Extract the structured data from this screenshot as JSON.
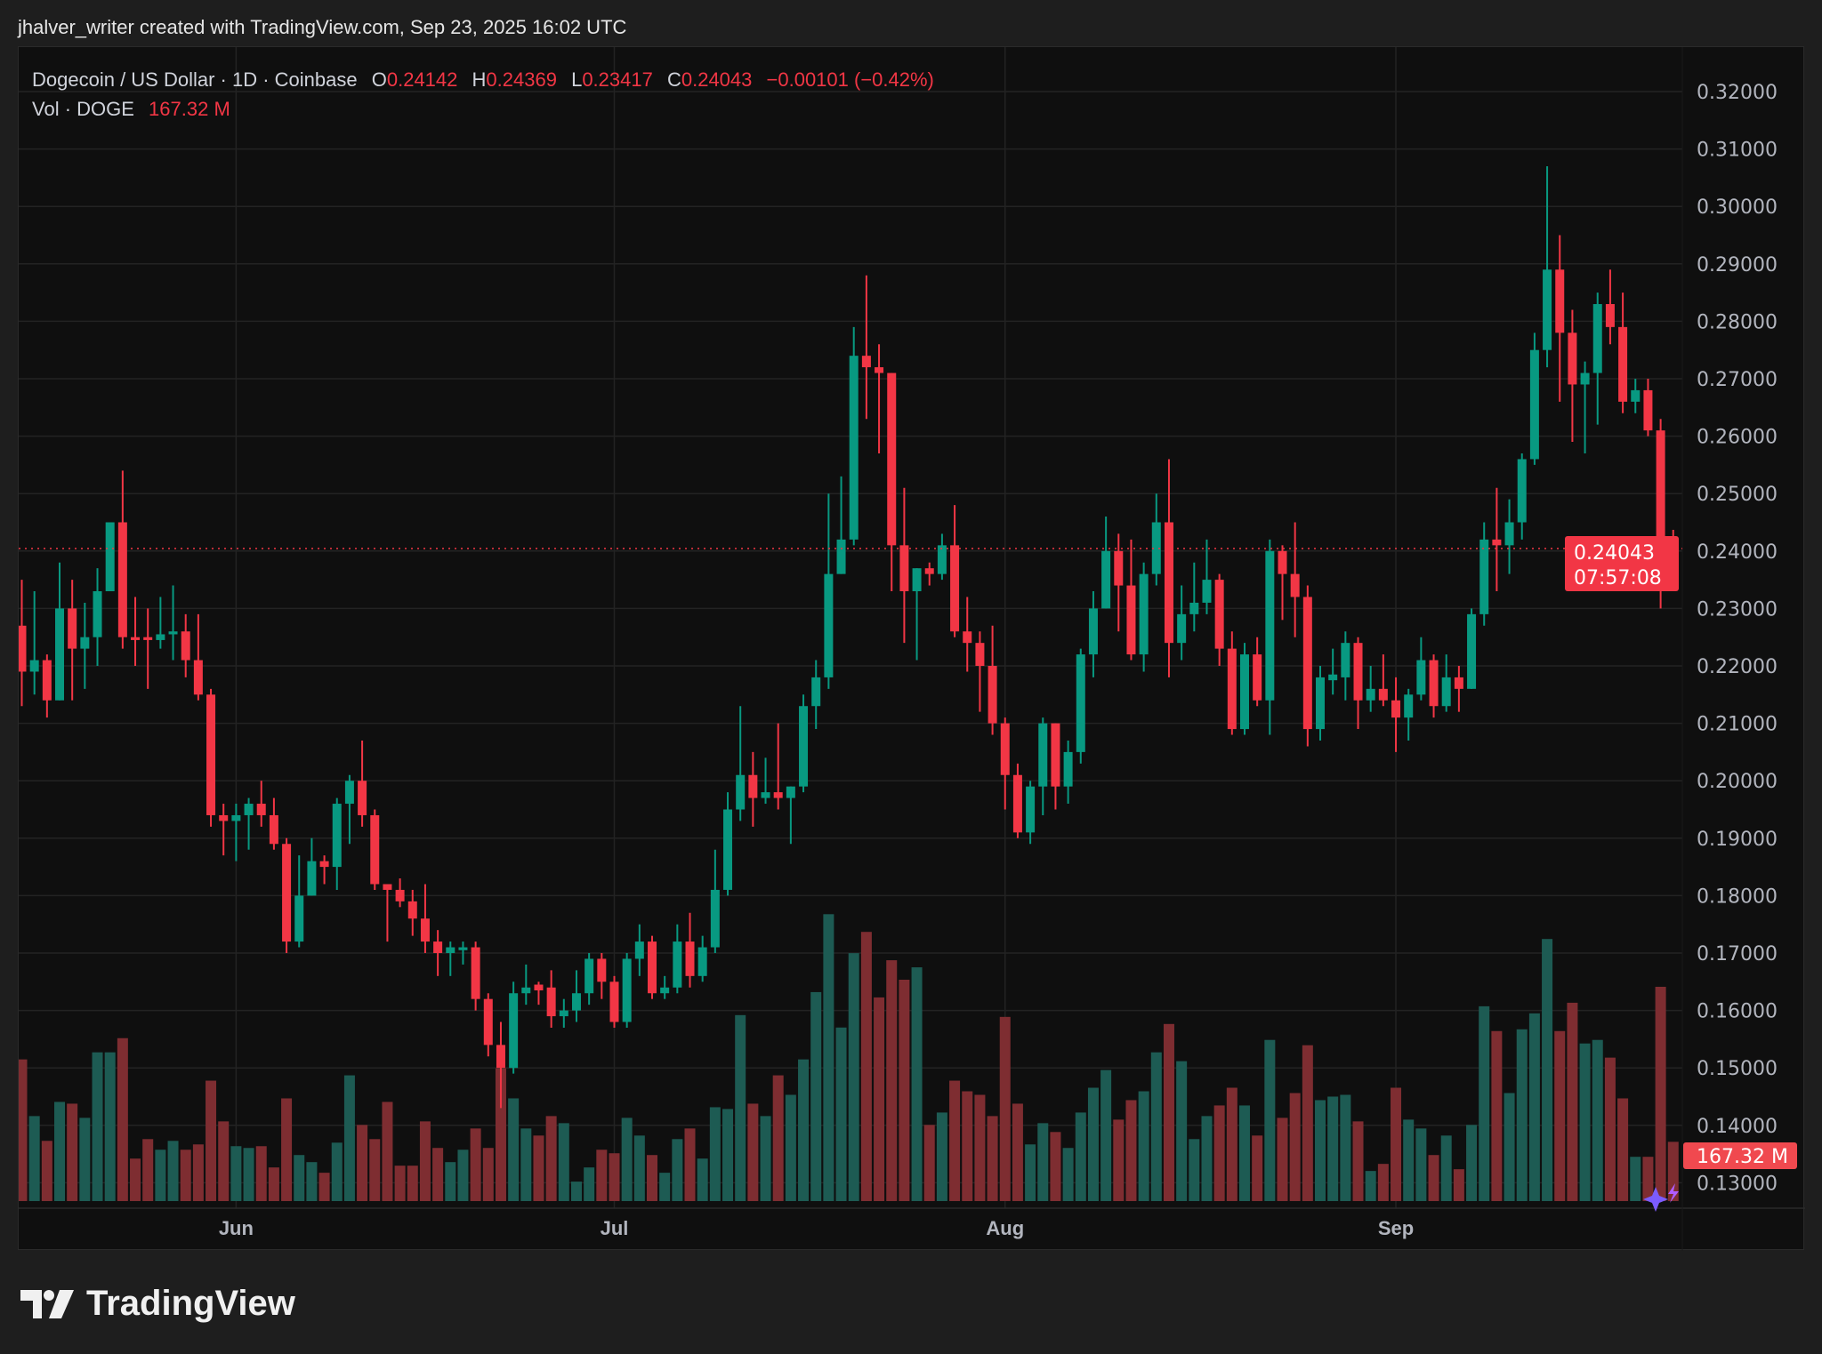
{
  "credit": "jhalver_writer created with TradingView.com, Sep 23, 2025 16:02 UTC",
  "legend": {
    "symbol": "Dogecoin / US Dollar · 1D · Coinbase",
    "o_label": "O",
    "o": "0.24142",
    "h_label": "H",
    "h": "0.24369",
    "l_label": "L",
    "l": "0.23417",
    "c_label": "C",
    "c": "0.24043",
    "change": "−0.00101 (−0.42%)",
    "vol_label": "Vol · DOGE",
    "vol": "167.32 M"
  },
  "price_tag": {
    "price": "0.24043",
    "countdown": "07:57:08"
  },
  "volume_tag": "167.32 M",
  "brand": "TradingView",
  "colors": {
    "up": "#089981",
    "down": "#f23645",
    "vol_up": "#1d5b53",
    "vol_down": "#7e2d31",
    "grid": "#232323"
  },
  "chart_data": {
    "type": "candlestick",
    "title": "Dogecoin / US Dollar · 1D · Coinbase",
    "start_date": "2025-05-15",
    "end_date": "2025-09-23",
    "ylim": [
      0.125,
      0.325
    ],
    "y_ticks": [
      "0.32000",
      "0.31000",
      "0.30000",
      "0.29000",
      "0.28000",
      "0.27000",
      "0.26000",
      "0.25000",
      "0.24000",
      "0.23000",
      "0.22000",
      "0.21000",
      "0.20000",
      "0.19000",
      "0.18000",
      "0.17000",
      "0.16000",
      "0.15000",
      "0.14000",
      "0.13000"
    ],
    "x_ticks": [
      {
        "label": "Jun",
        "day": 17
      },
      {
        "label": "Jul",
        "day": 47
      },
      {
        "label": "Aug",
        "day": 78
      },
      {
        "label": "Sep",
        "day": 109
      }
    ],
    "last_price": 0.24043,
    "fields": [
      "open",
      "high",
      "low",
      "close",
      "volume_M"
    ],
    "candles": [
      [
        0.227,
        0.235,
        0.213,
        0.219,
        400
      ],
      [
        0.219,
        0.233,
        0.215,
        0.221,
        240
      ],
      [
        0.221,
        0.222,
        0.211,
        0.214,
        170
      ],
      [
        0.214,
        0.238,
        0.214,
        0.23,
        280
      ],
      [
        0.23,
        0.235,
        0.214,
        0.223,
        275
      ],
      [
        0.223,
        0.231,
        0.216,
        0.225,
        235
      ],
      [
        0.225,
        0.237,
        0.22,
        0.233,
        420
      ],
      [
        0.233,
        0.245,
        0.233,
        0.245,
        420
      ],
      [
        0.245,
        0.254,
        0.223,
        0.225,
        460
      ],
      [
        0.225,
        0.232,
        0.22,
        0.2245,
        120
      ],
      [
        0.225,
        0.23,
        0.216,
        0.2245,
        175
      ],
      [
        0.2245,
        0.232,
        0.223,
        0.2255,
        145
      ],
      [
        0.2255,
        0.234,
        0.221,
        0.226,
        170
      ],
      [
        0.226,
        0.229,
        0.218,
        0.221,
        145
      ],
      [
        0.221,
        0.229,
        0.214,
        0.215,
        160
      ],
      [
        0.215,
        0.216,
        0.192,
        0.194,
        340
      ],
      [
        0.194,
        0.196,
        0.187,
        0.193,
        225
      ],
      [
        0.193,
        0.196,
        0.186,
        0.194,
        155
      ],
      [
        0.194,
        0.197,
        0.188,
        0.196,
        150
      ],
      [
        0.196,
        0.2,
        0.192,
        0.194,
        155
      ],
      [
        0.194,
        0.197,
        0.188,
        0.189,
        95
      ],
      [
        0.189,
        0.19,
        0.17,
        0.172,
        290
      ],
      [
        0.172,
        0.187,
        0.171,
        0.18,
        130
      ],
      [
        0.18,
        0.19,
        0.18,
        0.186,
        110
      ],
      [
        0.186,
        0.187,
        0.182,
        0.185,
        80
      ],
      [
        0.185,
        0.197,
        0.181,
        0.196,
        165
      ],
      [
        0.196,
        0.201,
        0.189,
        0.2,
        355
      ],
      [
        0.2,
        0.207,
        0.192,
        0.194,
        215
      ],
      [
        0.194,
        0.195,
        0.181,
        0.182,
        175
      ],
      [
        0.182,
        0.182,
        0.172,
        0.181,
        280
      ],
      [
        0.181,
        0.183,
        0.178,
        0.179,
        100
      ],
      [
        0.179,
        0.181,
        0.173,
        0.176,
        100
      ],
      [
        0.176,
        0.182,
        0.17,
        0.172,
        225
      ],
      [
        0.172,
        0.174,
        0.166,
        0.17,
        150
      ],
      [
        0.17,
        0.172,
        0.166,
        0.171,
        110
      ],
      [
        0.1705,
        0.172,
        0.168,
        0.171,
        145
      ],
      [
        0.171,
        0.172,
        0.16,
        0.162,
        205
      ],
      [
        0.162,
        0.163,
        0.152,
        0.154,
        150
      ],
      [
        0.154,
        0.158,
        0.143,
        0.15,
        375
      ],
      [
        0.15,
        0.165,
        0.149,
        0.163,
        290
      ],
      [
        0.163,
        0.168,
        0.161,
        0.164,
        205
      ],
      [
        0.1645,
        0.165,
        0.161,
        0.1635,
        185
      ],
      [
        0.164,
        0.167,
        0.157,
        0.159,
        240
      ],
      [
        0.159,
        0.162,
        0.157,
        0.16,
        220
      ],
      [
        0.16,
        0.167,
        0.158,
        0.163,
        55
      ],
      [
        0.163,
        0.17,
        0.161,
        0.169,
        95
      ],
      [
        0.169,
        0.17,
        0.162,
        0.165,
        145
      ],
      [
        0.165,
        0.166,
        0.157,
        0.158,
        135
      ],
      [
        0.158,
        0.17,
        0.157,
        0.169,
        235
      ],
      [
        0.169,
        0.175,
        0.166,
        0.172,
        185
      ],
      [
        0.172,
        0.173,
        0.162,
        0.163,
        130
      ],
      [
        0.163,
        0.166,
        0.162,
        0.164,
        80
      ],
      [
        0.164,
        0.175,
        0.163,
        0.172,
        175
      ],
      [
        0.172,
        0.177,
        0.164,
        0.166,
        205
      ],
      [
        0.166,
        0.173,
        0.165,
        0.171,
        120
      ],
      [
        0.171,
        0.188,
        0.17,
        0.181,
        265
      ],
      [
        0.181,
        0.198,
        0.18,
        0.195,
        260
      ],
      [
        0.195,
        0.213,
        0.193,
        0.201,
        525
      ],
      [
        0.201,
        0.205,
        0.192,
        0.197,
        275
      ],
      [
        0.197,
        0.204,
        0.196,
        0.198,
        240
      ],
      [
        0.198,
        0.21,
        0.195,
        0.197,
        355
      ],
      [
        0.197,
        0.199,
        0.189,
        0.199,
        300
      ],
      [
        0.199,
        0.215,
        0.198,
        0.213,
        400
      ],
      [
        0.213,
        0.221,
        0.209,
        0.218,
        590
      ],
      [
        0.218,
        0.25,
        0.216,
        0.236,
        810
      ],
      [
        0.236,
        0.253,
        0.236,
        0.242,
        490
      ],
      [
        0.242,
        0.279,
        0.241,
        0.274,
        700
      ],
      [
        0.274,
        0.288,
        0.263,
        0.272,
        760
      ],
      [
        0.272,
        0.276,
        0.257,
        0.271,
        575
      ],
      [
        0.271,
        0.271,
        0.233,
        0.241,
        680
      ],
      [
        0.241,
        0.251,
        0.224,
        0.233,
        625
      ],
      [
        0.233,
        0.237,
        0.221,
        0.237,
        660
      ],
      [
        0.237,
        0.238,
        0.234,
        0.236,
        215
      ],
      [
        0.236,
        0.243,
        0.235,
        0.241,
        250
      ],
      [
        0.241,
        0.248,
        0.225,
        0.226,
        340
      ],
      [
        0.226,
        0.232,
        0.219,
        0.224,
        310
      ],
      [
        0.224,
        0.226,
        0.212,
        0.22,
        300
      ],
      [
        0.22,
        0.227,
        0.208,
        0.21,
        240
      ],
      [
        0.21,
        0.211,
        0.195,
        0.201,
        520
      ],
      [
        0.201,
        0.203,
        0.19,
        0.191,
        275
      ],
      [
        0.191,
        0.2,
        0.189,
        0.199,
        160
      ],
      [
        0.199,
        0.211,
        0.194,
        0.21,
        220
      ],
      [
        0.21,
        0.21,
        0.195,
        0.199,
        195
      ],
      [
        0.199,
        0.207,
        0.196,
        0.205,
        150
      ],
      [
        0.205,
        0.223,
        0.203,
        0.222,
        250
      ],
      [
        0.222,
        0.233,
        0.218,
        0.23,
        320
      ],
      [
        0.23,
        0.246,
        0.23,
        0.24,
        370
      ],
      [
        0.24,
        0.243,
        0.226,
        0.234,
        230
      ],
      [
        0.234,
        0.242,
        0.221,
        0.222,
        285
      ],
      [
        0.222,
        0.238,
        0.219,
        0.236,
        310
      ],
      [
        0.236,
        0.25,
        0.234,
        0.245,
        420
      ],
      [
        0.245,
        0.256,
        0.218,
        0.224,
        500
      ],
      [
        0.224,
        0.234,
        0.221,
        0.229,
        395
      ],
      [
        0.229,
        0.238,
        0.226,
        0.231,
        175
      ],
      [
        0.231,
        0.242,
        0.229,
        0.235,
        240
      ],
      [
        0.235,
        0.236,
        0.22,
        0.223,
        270
      ],
      [
        0.223,
        0.226,
        0.208,
        0.209,
        320
      ],
      [
        0.209,
        0.224,
        0.208,
        0.222,
        270
      ],
      [
        0.222,
        0.225,
        0.213,
        0.214,
        185
      ],
      [
        0.214,
        0.242,
        0.208,
        0.24,
        455
      ],
      [
        0.24,
        0.241,
        0.228,
        0.236,
        235
      ],
      [
        0.236,
        0.245,
        0.225,
        0.232,
        305
      ],
      [
        0.232,
        0.234,
        0.206,
        0.209,
        440
      ],
      [
        0.209,
        0.22,
        0.207,
        0.218,
        285
      ],
      [
        0.2175,
        0.223,
        0.215,
        0.2185,
        295
      ],
      [
        0.218,
        0.226,
        0.214,
        0.224,
        300
      ],
      [
        0.224,
        0.225,
        0.209,
        0.214,
        225
      ],
      [
        0.214,
        0.22,
        0.212,
        0.216,
        85
      ],
      [
        0.216,
        0.222,
        0.213,
        0.214,
        105
      ],
      [
        0.214,
        0.218,
        0.205,
        0.211,
        320
      ],
      [
        0.211,
        0.216,
        0.207,
        0.215,
        230
      ],
      [
        0.215,
        0.225,
        0.214,
        0.221,
        205
      ],
      [
        0.221,
        0.222,
        0.211,
        0.213,
        130
      ],
      [
        0.213,
        0.222,
        0.212,
        0.218,
        185
      ],
      [
        0.218,
        0.22,
        0.212,
        0.216,
        90
      ],
      [
        0.216,
        0.23,
        0.216,
        0.229,
        215
      ],
      [
        0.229,
        0.245,
        0.227,
        0.242,
        550
      ],
      [
        0.242,
        0.251,
        0.233,
        0.241,
        480
      ],
      [
        0.241,
        0.249,
        0.236,
        0.245,
        305
      ],
      [
        0.245,
        0.257,
        0.242,
        0.256,
        485
      ],
      [
        0.256,
        0.278,
        0.255,
        0.275,
        530
      ],
      [
        0.275,
        0.307,
        0.272,
        0.289,
        740
      ],
      [
        0.289,
        0.295,
        0.266,
        0.278,
        480
      ],
      [
        0.278,
        0.282,
        0.259,
        0.269,
        560
      ],
      [
        0.269,
        0.273,
        0.257,
        0.271,
        445
      ],
      [
        0.271,
        0.285,
        0.262,
        0.283,
        455
      ],
      [
        0.283,
        0.289,
        0.276,
        0.279,
        405
      ],
      [
        0.279,
        0.285,
        0.264,
        0.266,
        290
      ],
      [
        0.266,
        0.27,
        0.264,
        0.268,
        125
      ],
      [
        0.268,
        0.27,
        0.26,
        0.261,
        125
      ],
      [
        0.261,
        0.263,
        0.23,
        0.242,
        605
      ],
      [
        0.24142,
        0.24369,
        0.23417,
        0.24043,
        167.32
      ]
    ]
  }
}
